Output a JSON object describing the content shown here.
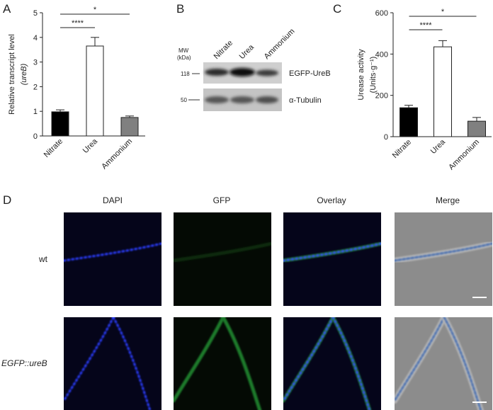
{
  "chart_data": [
    {
      "type": "bar",
      "panel": "A",
      "y_label": [
        "Relative transcript level",
        "(ureB)"
      ],
      "categories": [
        "Nitrate",
        "Urea",
        "Ammonium"
      ],
      "values": [
        0.98,
        3.65,
        0.75
      ],
      "errors": [
        0.08,
        0.35,
        0.06
      ],
      "colors": [
        "#000000",
        "#ffffff",
        "#808080"
      ],
      "ylim": [
        0,
        5
      ],
      "yticks": [
        0,
        1,
        2,
        3,
        4,
        5
      ],
      "annotations": [
        {
          "text": "****",
          "from": 0,
          "to": 1
        },
        {
          "text": "*",
          "from": 0,
          "to": 2
        }
      ]
    },
    {
      "type": "bar",
      "panel": "C",
      "y_label": [
        "Urease activity",
        "(Units·g⁻¹)"
      ],
      "categories": [
        "Nitrate",
        "Urea",
        "Ammonium"
      ],
      "values": [
        140,
        435,
        75
      ],
      "errors": [
        12,
        30,
        18
      ],
      "colors": [
        "#000000",
        "#ffffff",
        "#808080"
      ],
      "ylim": [
        0,
        600
      ],
      "yticks": [
        0,
        200,
        400,
        600
      ],
      "annotations": [
        {
          "text": "****",
          "from": 0,
          "to": 1
        },
        {
          "text": "*",
          "from": 0,
          "to": 2
        }
      ]
    }
  ],
  "blot": {
    "panel": "B",
    "mw_label": [
      "MW",
      "(kDa)"
    ],
    "lanes": [
      "Nitrate",
      "Urea",
      "Ammonium"
    ],
    "bands": [
      {
        "mw": "118",
        "label": "EGFP-UreB"
      },
      {
        "mw": "50",
        "label": "α-Tubulin"
      }
    ]
  },
  "microscopy": {
    "panel": "D",
    "columns": [
      "DAPI",
      "GFP",
      "Overlay",
      "Merge"
    ],
    "rows": [
      "wt",
      "EGFP::ureB"
    ]
  }
}
